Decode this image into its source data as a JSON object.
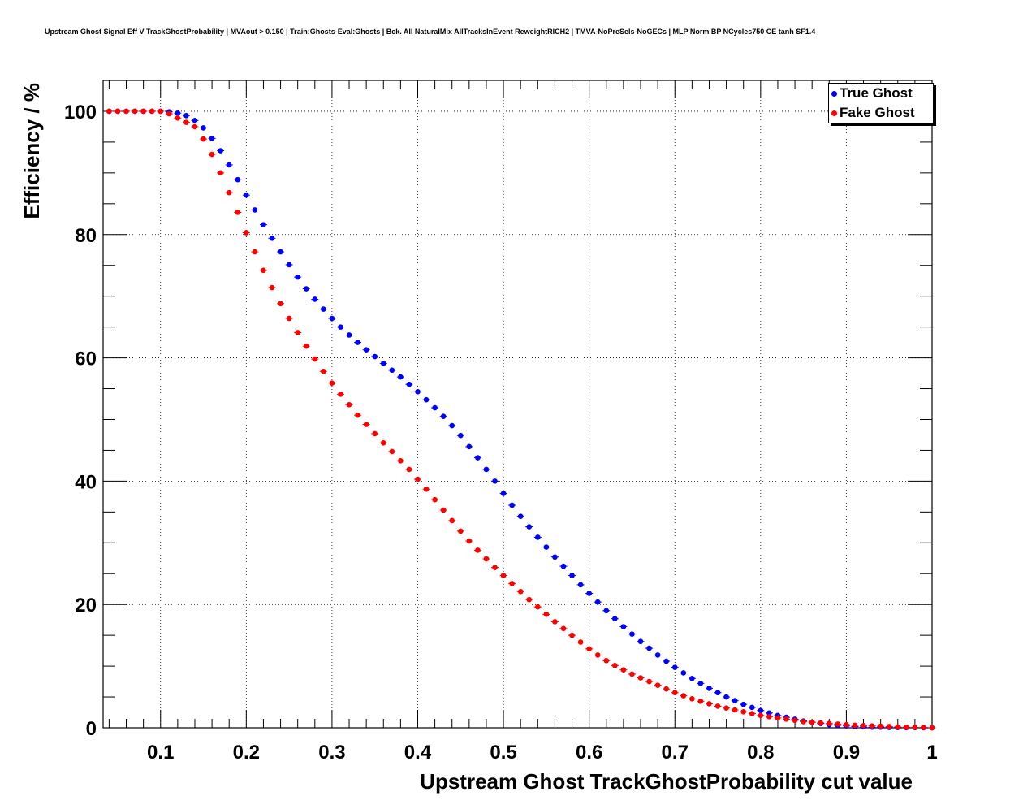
{
  "title": "Upstream Ghost Signal Eff V TrackGhostProbability | MVAout > 0.150 | Train:Ghosts-Eval:Ghosts | Bck. All NaturalMix AllTracksInEvent ReweightRICH2 | TMVA-NoPreSels-NoGECs | MLP Norm BP NCycles750 CE tanh SF1.4",
  "chart_data": {
    "type": "scatter",
    "title": "Upstream Ghost Signal Eff V TrackGhostProbability | MVAout > 0.150 | Train:Ghosts-Eval:Ghosts | Bck. All NaturalMix AllTracksInEvent ReweightRICH2 | TMVA-NoPreSels-NoGECs | MLP Norm BP NCycles750 CE tanh SF1.4",
    "xlabel": "Upstream Ghost TrackGhostProbability cut value",
    "ylabel": "Efficiency / %",
    "xlim": [
      0.033,
      1.0
    ],
    "ylim": [
      0,
      105
    ],
    "x_ticks": [
      "0.1",
      "0.2",
      "0.3",
      "0.4",
      "0.5",
      "0.6",
      "0.7",
      "0.8",
      "0.9",
      "1"
    ],
    "y_ticks": [
      "0",
      "20",
      "40",
      "60",
      "80",
      "100"
    ],
    "grid": true,
    "legend_position": "top-right",
    "series": [
      {
        "name": "True Ghost",
        "color": "#0000ff",
        "x": [
          0.04,
          0.05,
          0.06,
          0.07,
          0.08,
          0.09,
          0.1,
          0.11,
          0.12,
          0.13,
          0.14,
          0.15,
          0.16,
          0.17,
          0.18,
          0.19,
          0.2,
          0.21,
          0.22,
          0.23,
          0.24,
          0.25,
          0.26,
          0.27,
          0.28,
          0.29,
          0.3,
          0.31,
          0.32,
          0.33,
          0.34,
          0.35,
          0.36,
          0.37,
          0.38,
          0.39,
          0.4,
          0.41,
          0.42,
          0.43,
          0.44,
          0.45,
          0.46,
          0.47,
          0.48,
          0.49,
          0.5,
          0.51,
          0.52,
          0.53,
          0.54,
          0.55,
          0.56,
          0.57,
          0.58,
          0.59,
          0.6,
          0.61,
          0.62,
          0.63,
          0.64,
          0.65,
          0.66,
          0.67,
          0.68,
          0.69,
          0.7,
          0.71,
          0.72,
          0.73,
          0.74,
          0.75,
          0.76,
          0.77,
          0.78,
          0.79,
          0.8,
          0.81,
          0.82,
          0.83,
          0.84,
          0.85,
          0.86,
          0.87,
          0.88,
          0.89,
          0.9,
          0.91,
          0.92,
          0.93,
          0.94,
          0.95,
          0.96,
          0.97,
          0.98,
          0.99,
          1.0
        ],
        "y": [
          100.0,
          100.0,
          100.0,
          100.0,
          100.0,
          100.0,
          100.0,
          99.9,
          99.7,
          99.3,
          98.5,
          97.3,
          95.6,
          93.6,
          91.3,
          88.9,
          86.4,
          84.0,
          81.6,
          79.4,
          77.2,
          75.1,
          73.1,
          71.2,
          69.5,
          67.9,
          66.4,
          65.0,
          63.7,
          62.5,
          61.3,
          60.2,
          59.1,
          58.0,
          56.9,
          55.7,
          54.5,
          53.2,
          51.9,
          50.5,
          49.0,
          47.4,
          45.6,
          43.8,
          41.9,
          40.0,
          38.0,
          36.1,
          34.3,
          32.6,
          30.9,
          29.3,
          27.7,
          26.2,
          24.7,
          23.2,
          21.8,
          20.4,
          19.0,
          17.7,
          16.4,
          15.2,
          14.0,
          12.9,
          11.8,
          10.8,
          9.8,
          8.9,
          8.0,
          7.2,
          6.4,
          5.7,
          5.0,
          4.4,
          3.8,
          3.3,
          2.8,
          2.4,
          2.0,
          1.7,
          1.4,
          1.1,
          0.9,
          0.7,
          0.5,
          0.4,
          0.3,
          0.2,
          0.15,
          0.1,
          0.1,
          0.05,
          0.05,
          0.03,
          0.02,
          0.01,
          0.0
        ]
      },
      {
        "name": "Fake Ghost",
        "color": "#ff0000",
        "x": [
          0.04,
          0.05,
          0.06,
          0.07,
          0.08,
          0.09,
          0.1,
          0.11,
          0.12,
          0.13,
          0.14,
          0.15,
          0.16,
          0.17,
          0.18,
          0.19,
          0.2,
          0.21,
          0.22,
          0.23,
          0.24,
          0.25,
          0.26,
          0.27,
          0.28,
          0.29,
          0.3,
          0.31,
          0.32,
          0.33,
          0.34,
          0.35,
          0.36,
          0.37,
          0.38,
          0.39,
          0.4,
          0.41,
          0.42,
          0.43,
          0.44,
          0.45,
          0.46,
          0.47,
          0.48,
          0.49,
          0.5,
          0.51,
          0.52,
          0.53,
          0.54,
          0.55,
          0.56,
          0.57,
          0.58,
          0.59,
          0.6,
          0.61,
          0.62,
          0.63,
          0.64,
          0.65,
          0.66,
          0.67,
          0.68,
          0.69,
          0.7,
          0.71,
          0.72,
          0.73,
          0.74,
          0.75,
          0.76,
          0.77,
          0.78,
          0.79,
          0.8,
          0.81,
          0.82,
          0.83,
          0.84,
          0.85,
          0.86,
          0.87,
          0.88,
          0.89,
          0.9,
          0.91,
          0.92,
          0.93,
          0.94,
          0.95,
          0.96,
          0.97,
          0.98,
          0.99,
          1.0
        ],
        "y": [
          100.0,
          100.0,
          100.0,
          100.0,
          100.0,
          100.0,
          100.0,
          99.6,
          98.9,
          98.2,
          97.5,
          95.5,
          93.0,
          90.0,
          86.8,
          83.6,
          80.3,
          77.2,
          74.2,
          71.4,
          68.8,
          66.4,
          64.1,
          61.9,
          59.8,
          57.8,
          55.9,
          54.1,
          52.4,
          50.7,
          49.2,
          47.7,
          46.2,
          44.8,
          43.3,
          41.9,
          40.3,
          38.7,
          37.0,
          35.3,
          33.6,
          31.9,
          30.3,
          28.8,
          27.4,
          26.0,
          24.7,
          23.4,
          22.1,
          20.8,
          19.6,
          18.4,
          17.2,
          16.1,
          15.0,
          13.9,
          12.8,
          11.8,
          10.9,
          10.1,
          9.4,
          8.7,
          8.1,
          7.5,
          6.9,
          6.3,
          5.7,
          5.2,
          4.7,
          4.3,
          3.9,
          3.5,
          3.2,
          2.9,
          2.6,
          2.3,
          2.0,
          1.8,
          1.6,
          1.4,
          1.2,
          1.0,
          0.9,
          0.8,
          0.7,
          0.6,
          0.5,
          0.4,
          0.35,
          0.3,
          0.25,
          0.2,
          0.15,
          0.1,
          0.08,
          0.05,
          0.0
        ]
      }
    ]
  }
}
